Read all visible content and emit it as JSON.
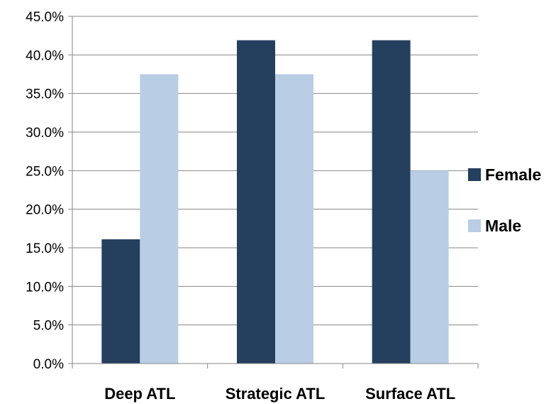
{
  "chart_data": {
    "type": "bar",
    "categories": [
      "Deep ATL",
      "Strategic ATL",
      "Surface ATL"
    ],
    "series": [
      {
        "name": "Female",
        "values": [
          16.1,
          41.9,
          41.9
        ],
        "color": "#253F5E"
      },
      {
        "name": "Male",
        "values": [
          37.5,
          37.5,
          25.0
        ],
        "color": "#B9CDE5"
      }
    ],
    "ylim": [
      0,
      45
    ],
    "yticks": [
      0,
      5,
      10,
      15,
      20,
      25,
      30,
      35,
      40,
      45
    ],
    "ytick_format": "percent_1dp",
    "grid": true,
    "legend_position": "right"
  }
}
